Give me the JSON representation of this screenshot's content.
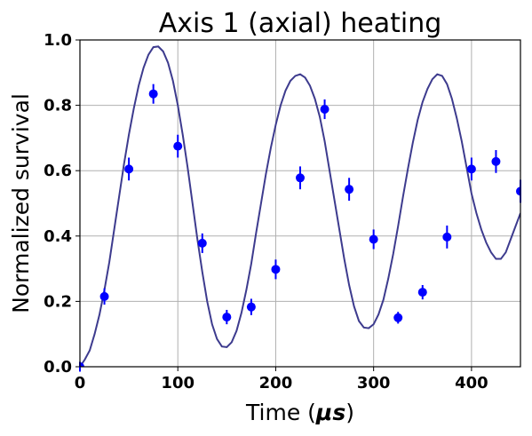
{
  "chart_data": {
    "type": "scatter",
    "title": "Axis 1 (axial) heating",
    "xlabel_prefix": "Time (",
    "xlabel_unit": "μs",
    "xlabel_suffix": ")",
    "ylabel": "Normalized survival",
    "xlim": [
      0,
      450
    ],
    "ylim": [
      0,
      1.0
    ],
    "xticks": [
      0,
      100,
      200,
      300,
      400
    ],
    "xtick_labels": [
      "0",
      "100",
      "200",
      "300",
      "400"
    ],
    "yticks": [
      0.0,
      0.2,
      0.4,
      0.6,
      0.8,
      1.0
    ],
    "ytick_labels": [
      "0.0",
      "0.2",
      "0.4",
      "0.6",
      "0.8",
      "1.0"
    ],
    "grid": true,
    "colors": {
      "points": "#0000ff",
      "fit_line": "#3d3b8e"
    },
    "series": [
      {
        "kind": "points_with_errorbars",
        "x": [
          0,
          25,
          50,
          75,
          100,
          125,
          150,
          175,
          200,
          225,
          250,
          275,
          300,
          325,
          350,
          375,
          400,
          425,
          450
        ],
        "y": [
          0.0,
          0.215,
          0.605,
          0.835,
          0.675,
          0.378,
          0.152,
          0.183,
          0.298,
          0.578,
          0.788,
          0.543,
          0.39,
          0.15,
          0.228,
          0.397,
          0.605,
          0.628,
          0.537
        ],
        "yerr": [
          0.015,
          0.025,
          0.035,
          0.03,
          0.035,
          0.03,
          0.022,
          0.025,
          0.03,
          0.035,
          0.03,
          0.035,
          0.03,
          0.018,
          0.022,
          0.035,
          0.035,
          0.035,
          0.035
        ]
      },
      {
        "kind": "fit_line",
        "x": [
          0,
          5,
          10,
          15,
          20,
          25,
          30,
          35,
          40,
          45,
          50,
          55,
          60,
          65,
          70,
          75,
          80,
          85,
          90,
          95,
          100,
          105,
          110,
          115,
          120,
          125,
          130,
          135,
          140,
          145,
          150,
          155,
          160,
          165,
          170,
          175,
          180,
          185,
          190,
          195,
          200,
          205,
          210,
          215,
          220,
          225,
          230,
          235,
          240,
          245,
          250,
          255,
          260,
          265,
          270,
          275,
          280,
          285,
          290,
          295,
          300,
          305,
          310,
          315,
          320,
          325,
          330,
          335,
          340,
          345,
          350,
          355,
          360,
          365,
          370,
          375,
          380,
          385,
          390,
          395,
          400,
          405,
          410,
          415,
          420,
          425,
          430,
          435,
          440,
          445,
          450
        ],
        "y": [
          0.0,
          0.022,
          0.05,
          0.1,
          0.16,
          0.235,
          0.32,
          0.42,
          0.52,
          0.62,
          0.71,
          0.79,
          0.86,
          0.915,
          0.955,
          0.978,
          0.98,
          0.965,
          0.93,
          0.875,
          0.8,
          0.71,
          0.61,
          0.5,
          0.39,
          0.29,
          0.2,
          0.13,
          0.085,
          0.062,
          0.06,
          0.075,
          0.11,
          0.165,
          0.235,
          0.315,
          0.41,
          0.5,
          0.59,
          0.67,
          0.74,
          0.8,
          0.845,
          0.875,
          0.89,
          0.895,
          0.885,
          0.86,
          0.82,
          0.765,
          0.69,
          0.6,
          0.51,
          0.42,
          0.33,
          0.25,
          0.185,
          0.14,
          0.12,
          0.118,
          0.13,
          0.16,
          0.205,
          0.27,
          0.345,
          0.43,
          0.52,
          0.605,
          0.685,
          0.755,
          0.81,
          0.85,
          0.88,
          0.895,
          0.89,
          0.865,
          0.82,
          0.76,
          0.69,
          0.61,
          0.53,
          0.47,
          0.42,
          0.38,
          0.35,
          0.33,
          0.33,
          0.35,
          0.39,
          0.43,
          0.47
        ]
      }
    ]
  }
}
